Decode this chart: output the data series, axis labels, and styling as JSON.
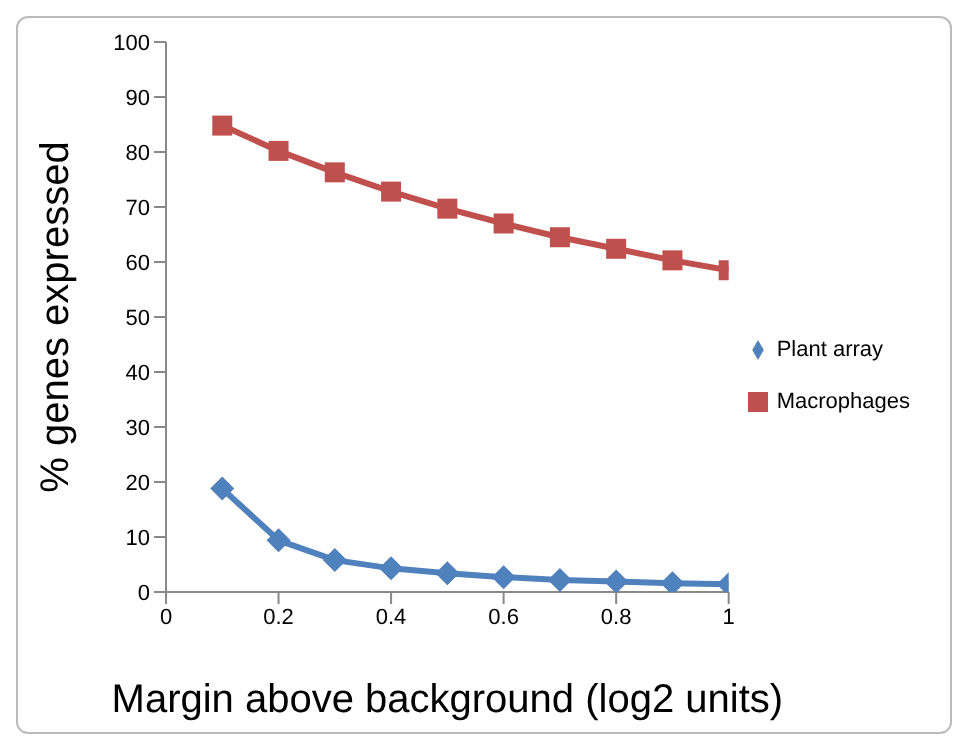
{
  "chart_data": {
    "type": "line",
    "xlabel": "Margin above background (log2 units)",
    "ylabel": "%  genes expressed",
    "x": [
      0.1,
      0.2,
      0.3,
      0.4,
      0.5,
      0.6,
      0.7,
      0.8,
      0.9,
      1
    ],
    "series": [
      {
        "name": "Plant array",
        "color": "#4f81bd",
        "marker": "diamond",
        "values": [
          18.8,
          9.4,
          5.8,
          4.3,
          3.4,
          2.7,
          2.2,
          1.9,
          1.6,
          1.4
        ]
      },
      {
        "name": "Macrophages",
        "color": "#c0504d",
        "marker": "square",
        "values": [
          84.8,
          80.2,
          76.3,
          72.8,
          69.7,
          67,
          64.5,
          62.4,
          60.3,
          58.5
        ]
      }
    ],
    "xlim": [
      0,
      1
    ],
    "xticks": [
      0,
      0.2,
      0.4,
      0.6,
      0.8,
      1
    ],
    "ylim": [
      0,
      100
    ],
    "yticks": [
      0,
      10,
      20,
      30,
      40,
      50,
      60,
      70,
      80,
      90,
      100
    ],
    "grid": false,
    "legend": "right",
    "line_style": "solid"
  }
}
